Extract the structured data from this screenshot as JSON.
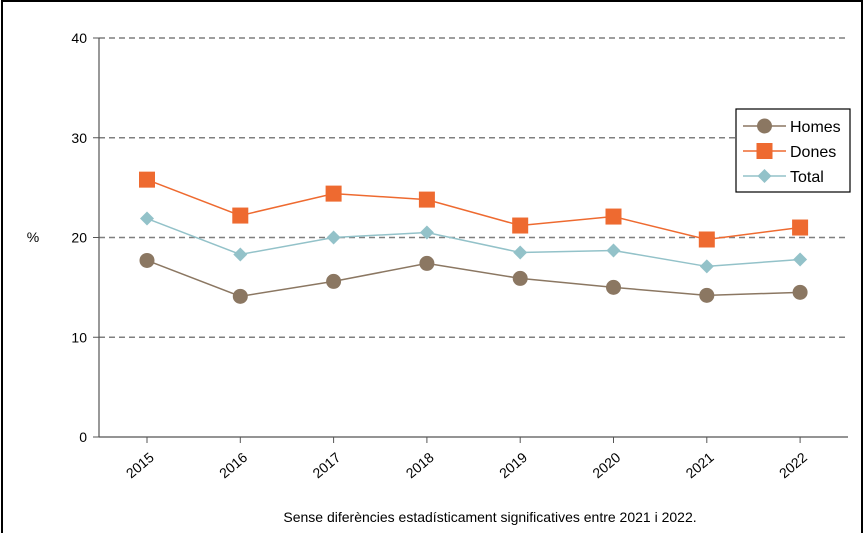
{
  "chart_data": {
    "type": "line",
    "categories": [
      "2015",
      "2016",
      "2017",
      "2018",
      "2019",
      "2020",
      "2021",
      "2022"
    ],
    "ylabel": "%",
    "ylim": [
      0,
      40
    ],
    "yticks": [
      0,
      10,
      20,
      30,
      40
    ],
    "grid": true,
    "legend_position": "top-right",
    "footnote": "Sense diferències estadísticament  significatives entre 2021 i 2022.",
    "series": [
      {
        "name": "Homes",
        "marker": "circle",
        "color": "#8b7762",
        "values": [
          17.7,
          14.1,
          15.6,
          17.4,
          15.9,
          15.0,
          14.2,
          14.5
        ]
      },
      {
        "name": "Dones",
        "marker": "square",
        "color": "#ee6a30",
        "values": [
          25.8,
          22.2,
          24.4,
          23.8,
          21.2,
          22.1,
          19.8,
          21.0
        ]
      },
      {
        "name": "Total",
        "marker": "diamond",
        "color": "#93c2c9",
        "values": [
          21.9,
          18.3,
          20.0,
          20.5,
          18.5,
          18.7,
          17.1,
          17.8
        ]
      }
    ]
  }
}
